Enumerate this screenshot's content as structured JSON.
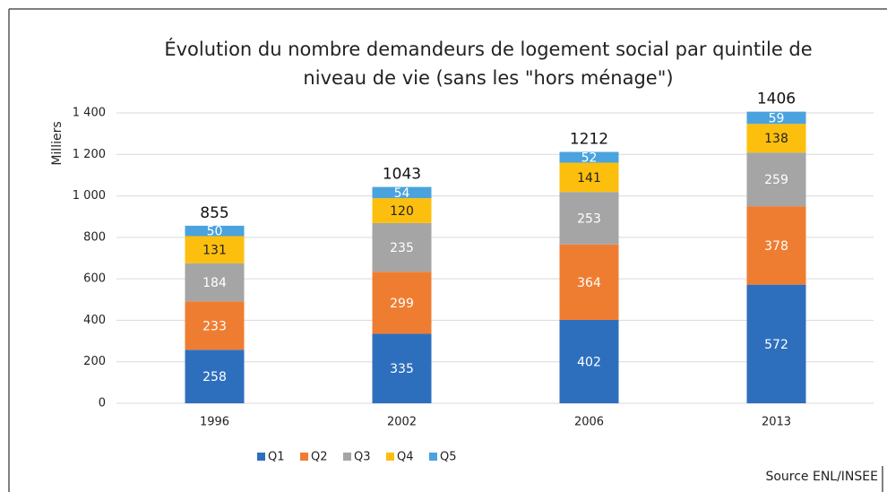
{
  "chart_data": {
    "type": "stacked_bar",
    "title": [
      "Évolution du nombre demandeurs de logement social par quintile de",
      "niveau de vie (sans les \"hors ménage\")"
    ],
    "y_label": "Milliers",
    "source": "Source ENL/INSEE",
    "categories": [
      "1996",
      "2002",
      "2006",
      "2013"
    ],
    "series": [
      {
        "name": "Q1",
        "color": "#2e6fbd",
        "values": [
          258,
          335,
          402,
          572
        ]
      },
      {
        "name": "Q2",
        "color": "#ef7d31",
        "values": [
          233,
          299,
          364,
          378
        ]
      },
      {
        "name": "Q3",
        "color": "#a5a5a5",
        "values": [
          184,
          235,
          253,
          259
        ]
      },
      {
        "name": "Q4",
        "color": "#fcbf0e",
        "values": [
          131,
          120,
          141,
          138
        ]
      },
      {
        "name": "Q5",
        "color": "#4aa3de",
        "values": [
          50,
          54,
          52,
          59
        ]
      }
    ],
    "totals": [
      855,
      1043,
      1212,
      1406
    ],
    "ylim": [
      0,
      1400
    ],
    "yticks": [
      0,
      200,
      400,
      600,
      800,
      {
        "value": 1000,
        "label": "1 000"
      },
      {
        "value": 1200,
        "label": "1 200"
      },
      {
        "value": 1400,
        "label": "1 400"
      }
    ],
    "grid": true
  }
}
